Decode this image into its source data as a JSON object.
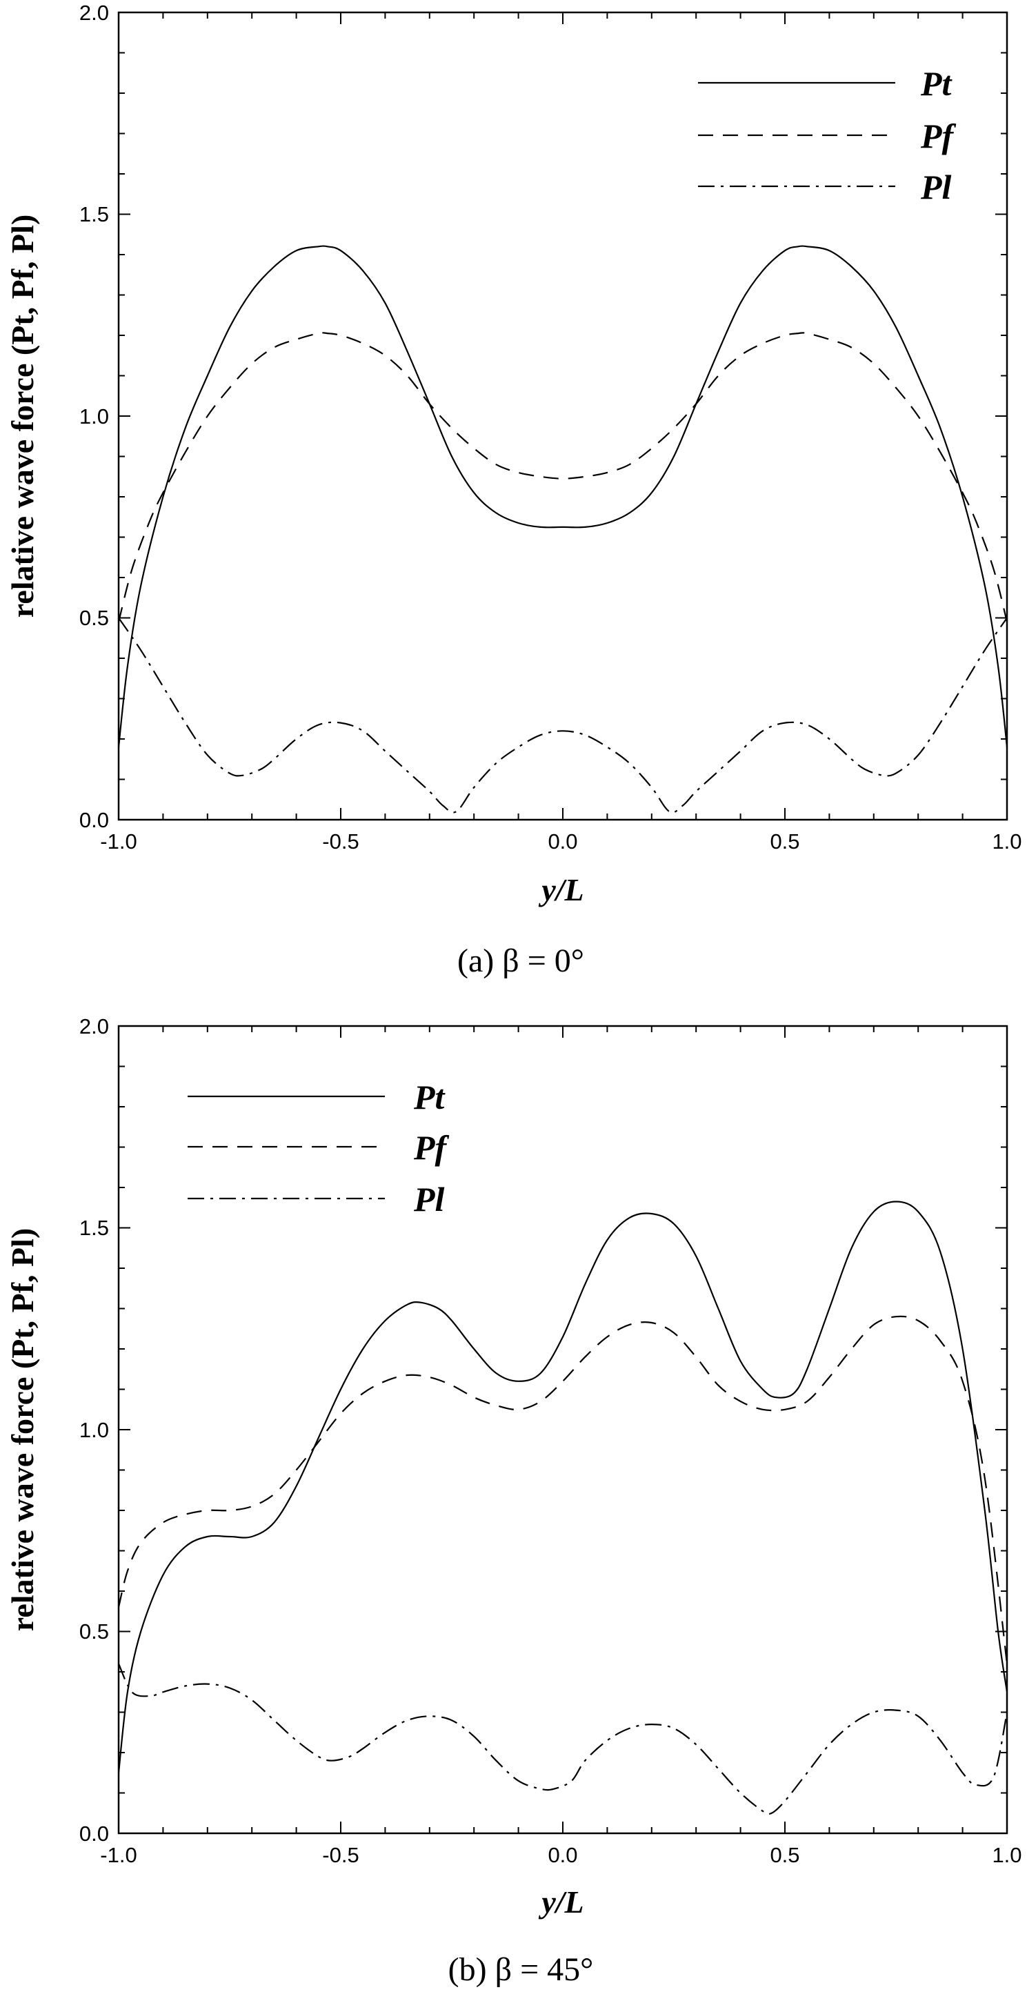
{
  "chart_data": [
    {
      "type": "line",
      "caption": "(a)  β = 0°",
      "xlabel": "y/L",
      "ylabel": "relative wave force (Pt, Pf, Pl)",
      "xlim": [
        -1.0,
        1.0
      ],
      "ylim": [
        0.0,
        2.0
      ],
      "xticks": [
        "-1.0",
        "-0.5",
        "0.0",
        "0.5",
        "1.0"
      ],
      "yticks": [
        "0.0",
        "0.5",
        "1.0",
        "1.5",
        "2.0"
      ],
      "grid": false,
      "legend_position": "top-right",
      "series": [
        {
          "name": "Pt",
          "line_style": "solid",
          "x": [
            -1.0,
            -0.98,
            -0.95,
            -0.9,
            -0.85,
            -0.8,
            -0.75,
            -0.7,
            -0.65,
            -0.6,
            -0.55,
            -0.53,
            -0.5,
            -0.45,
            -0.4,
            -0.35,
            -0.3,
            -0.25,
            -0.2,
            -0.15,
            -0.1,
            -0.05,
            0.0,
            0.05,
            0.1,
            0.15,
            0.2,
            0.25,
            0.3,
            0.35,
            0.4,
            0.45,
            0.5,
            0.53,
            0.55,
            0.6,
            0.65,
            0.7,
            0.75,
            0.8,
            0.85,
            0.9,
            0.95,
            0.98,
            1.0
          ],
          "y": [
            0.18,
            0.38,
            0.58,
            0.8,
            0.97,
            1.1,
            1.22,
            1.31,
            1.37,
            1.41,
            1.42,
            1.42,
            1.41,
            1.36,
            1.28,
            1.16,
            1.03,
            0.9,
            0.81,
            0.76,
            0.735,
            0.725,
            0.725,
            0.725,
            0.735,
            0.76,
            0.81,
            0.9,
            1.03,
            1.16,
            1.28,
            1.36,
            1.41,
            1.42,
            1.42,
            1.41,
            1.37,
            1.31,
            1.22,
            1.1,
            0.97,
            0.8,
            0.58,
            0.38,
            0.18
          ]
        },
        {
          "name": "Pf",
          "line_style": "dashed",
          "x": [
            -1.0,
            -0.97,
            -0.93,
            -0.9,
            -0.85,
            -0.8,
            -0.75,
            -0.7,
            -0.65,
            -0.6,
            -0.55,
            -0.53,
            -0.5,
            -0.45,
            -0.4,
            -0.35,
            -0.3,
            -0.25,
            -0.2,
            -0.15,
            -0.1,
            -0.05,
            0.0,
            0.05,
            0.1,
            0.15,
            0.2,
            0.25,
            0.3,
            0.35,
            0.4,
            0.45,
            0.5,
            0.53,
            0.55,
            0.6,
            0.65,
            0.7,
            0.75,
            0.8,
            0.85,
            0.9,
            0.93,
            0.97,
            1.0
          ],
          "y": [
            0.49,
            0.62,
            0.74,
            0.81,
            0.91,
            1.0,
            1.07,
            1.13,
            1.17,
            1.19,
            1.205,
            1.205,
            1.2,
            1.18,
            1.15,
            1.1,
            1.03,
            0.97,
            0.92,
            0.88,
            0.86,
            0.85,
            0.845,
            0.85,
            0.86,
            0.88,
            0.92,
            0.97,
            1.03,
            1.1,
            1.15,
            1.18,
            1.2,
            1.205,
            1.205,
            1.19,
            1.17,
            1.13,
            1.07,
            1.0,
            0.91,
            0.81,
            0.74,
            0.62,
            0.49
          ]
        },
        {
          "name": "Pl",
          "line_style": "dash-dot",
          "x": [
            -1.0,
            -0.95,
            -0.9,
            -0.85,
            -0.8,
            -0.75,
            -0.72,
            -0.68,
            -0.65,
            -0.6,
            -0.55,
            -0.5,
            -0.45,
            -0.4,
            -0.35,
            -0.3,
            -0.27,
            -0.24,
            -0.2,
            -0.15,
            -0.1,
            -0.05,
            0.0,
            0.05,
            0.1,
            0.15,
            0.2,
            0.24,
            0.27,
            0.3,
            0.35,
            0.4,
            0.45,
            0.5,
            0.55,
            0.6,
            0.65,
            0.68,
            0.72,
            0.75,
            0.8,
            0.85,
            0.9,
            0.95,
            1.0
          ],
          "y": [
            0.5,
            0.42,
            0.33,
            0.24,
            0.16,
            0.115,
            0.11,
            0.125,
            0.15,
            0.2,
            0.235,
            0.24,
            0.22,
            0.17,
            0.12,
            0.07,
            0.035,
            0.02,
            0.08,
            0.14,
            0.18,
            0.21,
            0.22,
            0.21,
            0.18,
            0.14,
            0.08,
            0.02,
            0.035,
            0.07,
            0.12,
            0.17,
            0.22,
            0.24,
            0.235,
            0.2,
            0.15,
            0.125,
            0.11,
            0.115,
            0.16,
            0.24,
            0.33,
            0.42,
            0.5
          ]
        }
      ]
    },
    {
      "type": "line",
      "caption": "(b)  β = 45°",
      "xlabel": "y/L",
      "ylabel": "relative wave force (Pt, Pf, Pl)",
      "xlim": [
        -1.0,
        1.0
      ],
      "ylim": [
        0.0,
        2.0
      ],
      "xticks": [
        "-1.0",
        "-0.5",
        "0.0",
        "0.5",
        "1.0"
      ],
      "yticks": [
        "0.0",
        "0.5",
        "1.0",
        "1.5",
        "2.0"
      ],
      "grid": false,
      "legend_position": "top-left",
      "series": [
        {
          "name": "Pt",
          "line_style": "solid",
          "x": [
            -1.0,
            -0.98,
            -0.95,
            -0.9,
            -0.85,
            -0.8,
            -0.75,
            -0.7,
            -0.65,
            -0.6,
            -0.55,
            -0.5,
            -0.45,
            -0.4,
            -0.35,
            -0.32,
            -0.28,
            -0.25,
            -0.2,
            -0.15,
            -0.1,
            -0.05,
            0.0,
            0.05,
            0.1,
            0.15,
            0.2,
            0.25,
            0.3,
            0.35,
            0.4,
            0.45,
            0.48,
            0.52,
            0.55,
            0.6,
            0.65,
            0.7,
            0.75,
            0.8,
            0.85,
            0.9,
            0.95,
            0.98,
            1.0
          ],
          "y": [
            0.15,
            0.35,
            0.5,
            0.64,
            0.71,
            0.735,
            0.735,
            0.735,
            0.77,
            0.86,
            0.98,
            1.1,
            1.2,
            1.27,
            1.31,
            1.315,
            1.3,
            1.27,
            1.2,
            1.14,
            1.12,
            1.14,
            1.23,
            1.36,
            1.47,
            1.525,
            1.535,
            1.51,
            1.43,
            1.3,
            1.17,
            1.1,
            1.08,
            1.09,
            1.15,
            1.3,
            1.45,
            1.54,
            1.565,
            1.54,
            1.44,
            1.2,
            0.8,
            0.5,
            0.35
          ]
        },
        {
          "name": "Pf",
          "line_style": "dashed",
          "x": [
            -1.0,
            -0.98,
            -0.95,
            -0.9,
            -0.85,
            -0.8,
            -0.75,
            -0.7,
            -0.65,
            -0.6,
            -0.55,
            -0.5,
            -0.45,
            -0.4,
            -0.35,
            -0.3,
            -0.25,
            -0.2,
            -0.15,
            -0.1,
            -0.05,
            0.0,
            0.05,
            0.1,
            0.15,
            0.2,
            0.25,
            0.3,
            0.35,
            0.4,
            0.45,
            0.5,
            0.55,
            0.6,
            0.65,
            0.7,
            0.75,
            0.8,
            0.85,
            0.9,
            0.95,
            1.0
          ],
          "y": [
            0.56,
            0.65,
            0.72,
            0.77,
            0.79,
            0.8,
            0.8,
            0.81,
            0.84,
            0.9,
            0.97,
            1.04,
            1.09,
            1.12,
            1.135,
            1.13,
            1.11,
            1.08,
            1.06,
            1.05,
            1.07,
            1.12,
            1.18,
            1.23,
            1.26,
            1.265,
            1.24,
            1.18,
            1.11,
            1.07,
            1.05,
            1.05,
            1.07,
            1.13,
            1.2,
            1.26,
            1.28,
            1.27,
            1.22,
            1.12,
            0.88,
            0.42
          ]
        },
        {
          "name": "Pl",
          "line_style": "dash-dot",
          "x": [
            -1.0,
            -0.97,
            -0.93,
            -0.9,
            -0.85,
            -0.8,
            -0.75,
            -0.7,
            -0.65,
            -0.6,
            -0.55,
            -0.52,
            -0.48,
            -0.45,
            -0.4,
            -0.35,
            -0.3,
            -0.25,
            -0.2,
            -0.15,
            -0.1,
            -0.05,
            -0.02,
            0.02,
            0.05,
            0.1,
            0.15,
            0.2,
            0.25,
            0.3,
            0.35,
            0.4,
            0.45,
            0.47,
            0.5,
            0.55,
            0.6,
            0.65,
            0.7,
            0.75,
            0.8,
            0.85,
            0.9,
            0.93,
            0.97,
            1.0
          ],
          "y": [
            0.42,
            0.35,
            0.34,
            0.35,
            0.365,
            0.37,
            0.36,
            0.33,
            0.28,
            0.23,
            0.19,
            0.18,
            0.19,
            0.21,
            0.25,
            0.28,
            0.29,
            0.28,
            0.24,
            0.18,
            0.13,
            0.11,
            0.11,
            0.13,
            0.18,
            0.23,
            0.26,
            0.27,
            0.26,
            0.22,
            0.16,
            0.1,
            0.055,
            0.05,
            0.08,
            0.15,
            0.22,
            0.27,
            0.3,
            0.305,
            0.29,
            0.23,
            0.15,
            0.12,
            0.14,
            0.3
          ]
        }
      ]
    }
  ]
}
